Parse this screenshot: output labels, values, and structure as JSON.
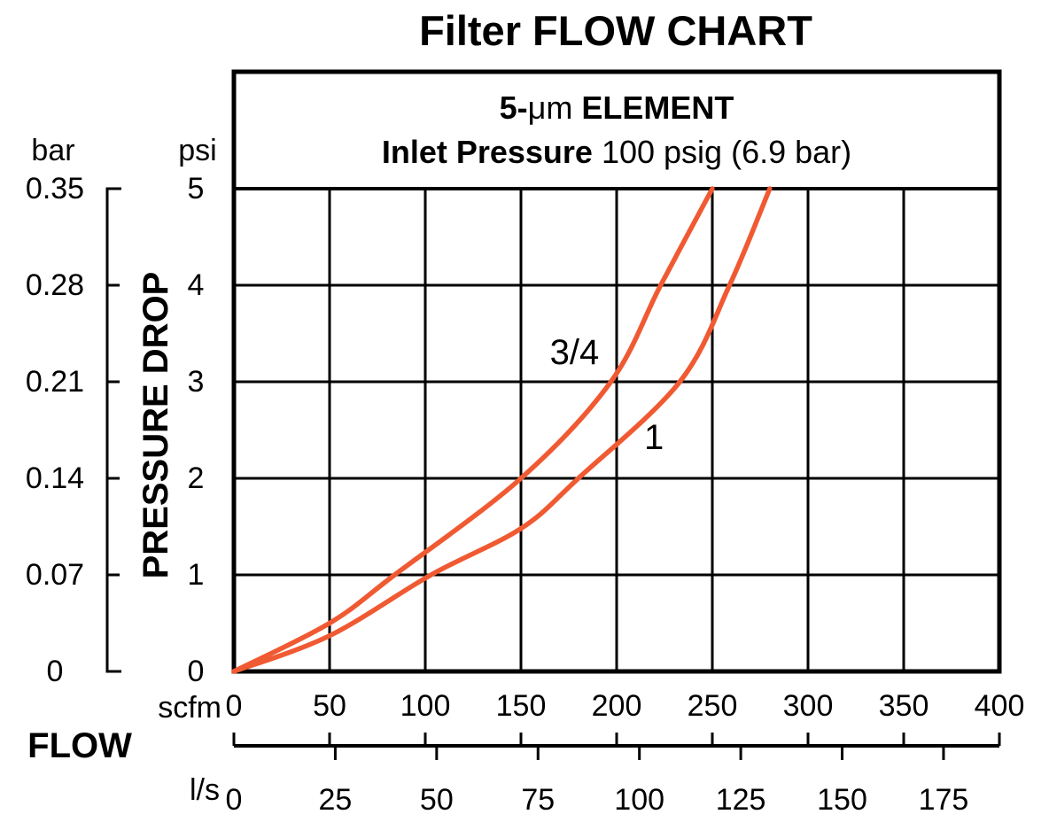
{
  "title": "Filter FLOW CHART",
  "colors": {
    "curve": "#F05A32",
    "line": "#000000",
    "background": "#FFFFFF"
  },
  "header": {
    "line1": {
      "bold_prefix": "5-",
      "mu": "μm",
      "bold_suffix": " ELEMENT"
    },
    "line2": {
      "bold": "Inlet Pressure",
      "regular": " 100 psig (6.9 bar)"
    }
  },
  "pressure_axis": {
    "bar_unit_label": "bar",
    "psi_unit_label": "psi",
    "axis_title": "PRESSURE DROP",
    "bar_tick_labels": [
      "0.35",
      "0.28",
      "0.21",
      "0.14",
      "0.07",
      "0"
    ],
    "psi_tick_labels": [
      "5",
      "4",
      "3",
      "2",
      "1",
      "0"
    ]
  },
  "flow_axis": {
    "axis_title": "FLOW",
    "scfm_unit_label": "scfm",
    "lps_unit_label": "l/s",
    "scfm_tick_values": [
      0,
      50,
      100,
      150,
      200,
      250,
      300,
      350,
      400
    ],
    "lps_tick_values": [
      0,
      25,
      50,
      75,
      100,
      125,
      150,
      175
    ],
    "lps_minor_tick_values": [
      25,
      50,
      75,
      100,
      125,
      150,
      175
    ],
    "scfm_per_lps": 2.1189
  },
  "chart_data": {
    "type": "line",
    "title": "Filter FLOW CHART",
    "subtitle": "5-μm ELEMENT, Inlet Pressure 100 psig (6.9 bar)",
    "xlabel": "FLOW (scfm, l/s)",
    "ylabel": "PRESSURE DROP (psi, bar)",
    "xlim_scfm": [
      0,
      400
    ],
    "ylim_psi": [
      0,
      5
    ],
    "ylim_bar": [
      0,
      0.35
    ],
    "grid": true,
    "curve_color": "#F05A32",
    "series": [
      {
        "name": "3/4",
        "points_scfm_psi": [
          [
            0,
            0
          ],
          [
            50,
            0.5
          ],
          [
            84,
            1
          ],
          [
            150,
            2
          ],
          [
            197,
            3
          ],
          [
            223,
            4
          ],
          [
            250,
            5
          ]
        ],
        "label_at_scfm_psi": [
          178,
          3.3
        ]
      },
      {
        "name": "1",
        "points_scfm_psi": [
          [
            0,
            0
          ],
          [
            50,
            0.37
          ],
          [
            103,
            1
          ],
          [
            150,
            1.48
          ],
          [
            180,
            2
          ],
          [
            233,
            3
          ],
          [
            259,
            4
          ],
          [
            280,
            5
          ]
        ],
        "label_at_scfm_psi": [
          219.5,
          2.42
        ]
      }
    ]
  }
}
